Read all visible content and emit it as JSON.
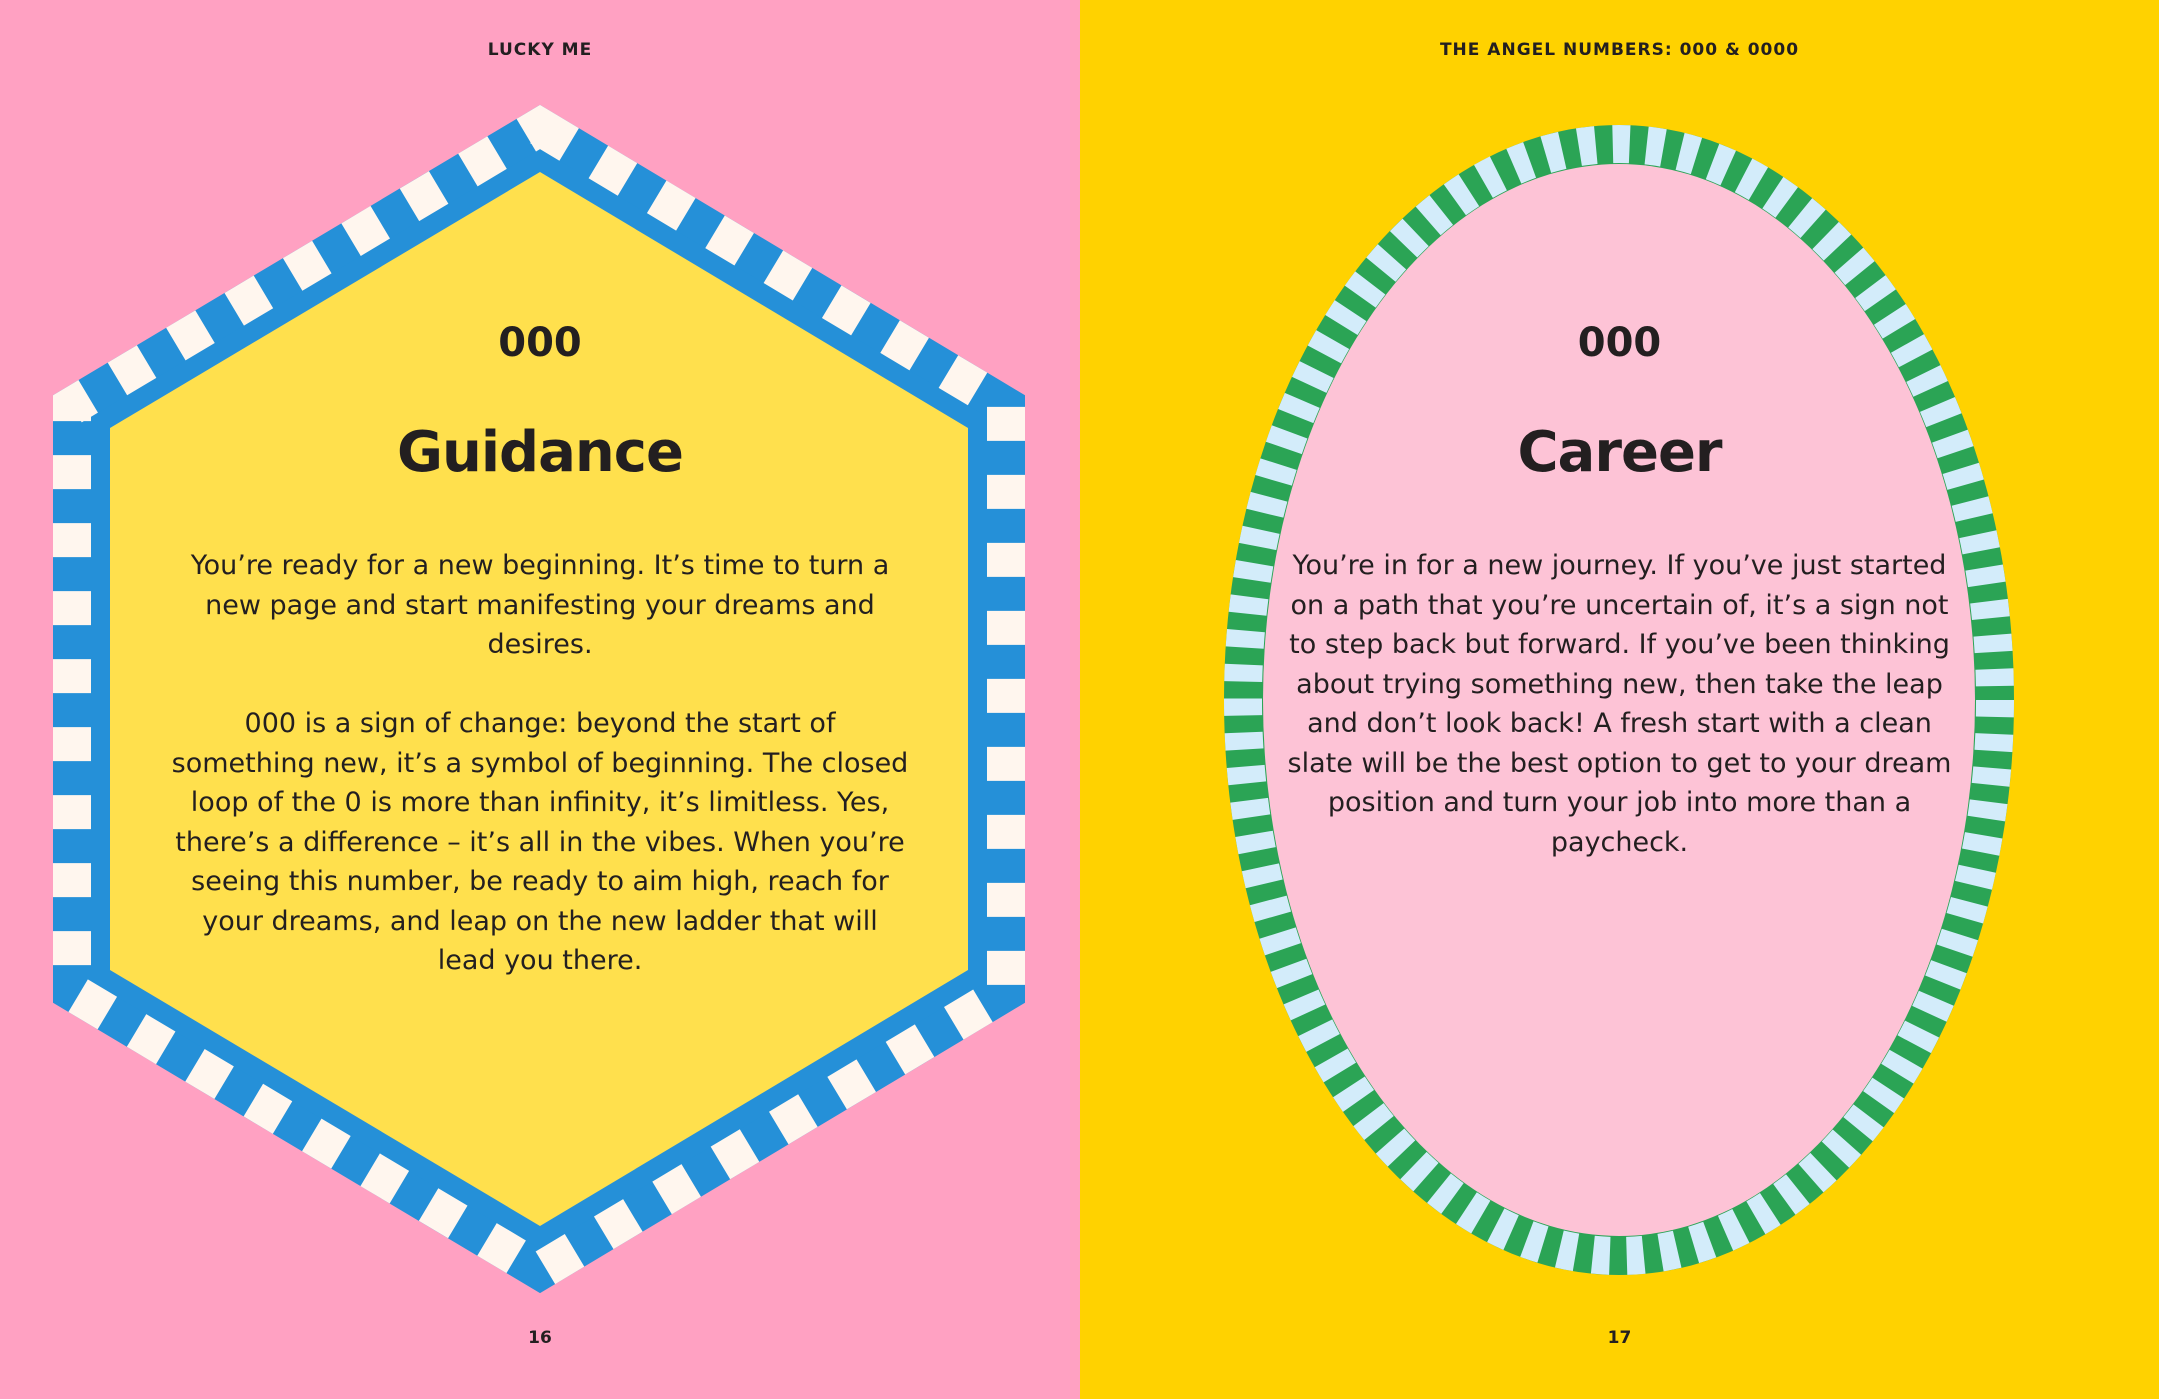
{
  "left_page": {
    "running_head": "LUCKY ME",
    "number": "000",
    "heading": "Guidance",
    "paragraphs": [
      "You’re ready for a new beginning. It’s time to turn a new page and start manifesting your dreams and desires.",
      "000 is a sign of change: beyond the start of something new, it’s a symbol of beginning. The closed loop of the 0 is more than infinity, it’s limitless. Yes, there’s a difference – it’s all in the vibes. When you’re seeing this number, be ready to aim high, reach for your dreams, and leap on the new ladder that will lead you there."
    ],
    "page_number": "16"
  },
  "right_page": {
    "running_head": "THE ANGEL NUMBERS: 000 & 0000",
    "number": "000",
    "heading": "Career",
    "paragraphs": [
      "You’re in for a new journey. If you’ve just started on a path that you’re uncertain of, it’s a sign not to step back but forward. If you’ve been thinking about trying something new, then take the leap and don’t look back! A fresh start with a clean slate will be the best option to get to your dream position and turn your job into more than a paycheck."
    ],
    "page_number": "17"
  },
  "colors": {
    "left_background": "#ffa1c2",
    "hexagon_fill": "#ffe04d",
    "hexagon_stripe_a": "#2590d8",
    "hexagon_stripe_b": "#fff6ee",
    "right_background": "#ffd200",
    "oval_fill": "#fdc3d6",
    "oval_stripe_a": "#2ba455",
    "oval_stripe_b": "#d3ecfa",
    "text": "#231f20"
  }
}
